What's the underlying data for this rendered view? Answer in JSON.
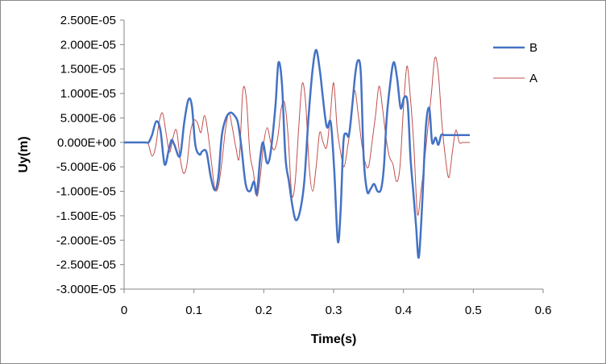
{
  "chart_data": {
    "type": "line",
    "title": "",
    "xlabel": "Time(s)",
    "ylabel": "Uy(m)",
    "xlim": [
      0,
      0.6
    ],
    "ylim": [
      -3e-05,
      2.5e-05
    ],
    "x_ticks": [
      "0",
      "0.1",
      "0.2",
      "0.3",
      "0.4",
      "0.5",
      "0.6"
    ],
    "x_tick_values": [
      0,
      0.1,
      0.2,
      0.3,
      0.4,
      0.5,
      0.6
    ],
    "y_ticks": [
      "2.500E-05",
      "2.000E-05",
      "1.500E-05",
      "1.000E-05",
      "5.000E-06",
      "0.000E+00",
      "-5.000E-06",
      "-1.000E-05",
      "-1.500E-05",
      "-2.000E-05",
      "-2.500E-05",
      "-3.000E-05"
    ],
    "y_tick_values": [
      2.5e-05,
      2e-05,
      1.5e-05,
      1e-05,
      5e-06,
      0,
      -5e-06,
      -1e-05,
      -1.5e-05,
      -2e-05,
      -2.5e-05,
      -3e-05
    ],
    "grid": false,
    "legend_position": "right",
    "series": [
      {
        "name": "B",
        "color": "#4472c4",
        "x": [
          0,
          0.03,
          0.035,
          0.04,
          0.046,
          0.052,
          0.058,
          0.064,
          0.068,
          0.072,
          0.08,
          0.086,
          0.092,
          0.097,
          0.102,
          0.108,
          0.112,
          0.118,
          0.124,
          0.13,
          0.135,
          0.14,
          0.146,
          0.152,
          0.158,
          0.163,
          0.168,
          0.174,
          0.18,
          0.186,
          0.19,
          0.195,
          0.199,
          0.204,
          0.208,
          0.212,
          0.217,
          0.221,
          0.226,
          0.231,
          0.236,
          0.241,
          0.246,
          0.252,
          0.258,
          0.264,
          0.27,
          0.275,
          0.28,
          0.284,
          0.288,
          0.291,
          0.296,
          0.301,
          0.306,
          0.31,
          0.314,
          0.318,
          0.322,
          0.327,
          0.331,
          0.335,
          0.339,
          0.343,
          0.348,
          0.353,
          0.358,
          0.363,
          0.368,
          0.372,
          0.376,
          0.381,
          0.386,
          0.391,
          0.396,
          0.401,
          0.406,
          0.41,
          0.414,
          0.418,
          0.422,
          0.427,
          0.432,
          0.437,
          0.441,
          0.446,
          0.45,
          0.454,
          0.458,
          0.462,
          0.466,
          0.47,
          0.474,
          0.478,
          0.483,
          0.487,
          0.491,
          0.495
        ],
        "y": [
          0,
          0,
          0,
          1.5e-06,
          4.3e-06,
          2.5e-06,
          -4.5e-06,
          -1.5e-06,
          5e-07,
          -5e-07,
          -2.8e-06,
          4e-06,
          8.7e-06,
          7.5e-06,
          -5e-07,
          -2.5e-06,
          -1.8e-06,
          -2e-06,
          -7e-06,
          -9.8e-06,
          -7e-06,
          1.5e-06,
          5e-06,
          6.1e-06,
          5.5e-06,
          4e-06,
          -1e-06,
          -8.5e-06,
          -1e-05,
          -8e-06,
          -1.05e-05,
          -3e-06,
          0,
          -4e-06,
          -3.5e-06,
          5e-07,
          8e-06,
          1.63e-05,
          1.2e-05,
          -3e-06,
          -8e-06,
          -1.3e-05,
          -1.59e-05,
          -1.4e-05,
          -8e-06,
          5e-06,
          1.5e-05,
          1.89e-05,
          1.5e-05,
          1e-05,
          5e-06,
          3e-06,
          4e-06,
          -6e-06,
          -2.02e-05,
          -1.4e-05,
          0,
          1.8e-06,
          1.5e-06,
          8e-06,
          1.4e-05,
          1.68e-05,
          1.4e-05,
          -3e-06,
          -1e-05,
          -9.5e-06,
          -8.5e-06,
          -1e-05,
          -9.5e-06,
          -5e-06,
          5e-06,
          1.2e-05,
          1.64e-05,
          1.3e-05,
          7e-06,
          9.2e-06,
          8e-06,
          -3e-06,
          -1e-05,
          -1.7e-05,
          -2.35e-05,
          -1.2e-05,
          3e-06,
          7e-06,
          0,
          1e-06,
          -5e-07,
          1.5e-06,
          1.5e-06,
          1.5e-06,
          1.5e-06,
          1.5e-06,
          1.5e-06,
          1.5e-06,
          1.5e-06,
          1.5e-06,
          1.5e-06,
          1.5e-06
        ]
      },
      {
        "name": "A",
        "color": "#c0504d",
        "x": [
          0,
          0.03,
          0.035,
          0.04,
          0.045,
          0.05,
          0.055,
          0.06,
          0.065,
          0.07,
          0.075,
          0.08,
          0.085,
          0.09,
          0.095,
          0.1,
          0.105,
          0.11,
          0.115,
          0.12,
          0.125,
          0.13,
          0.135,
          0.14,
          0.145,
          0.15,
          0.155,
          0.16,
          0.165,
          0.17,
          0.175,
          0.18,
          0.185,
          0.19,
          0.195,
          0.2,
          0.205,
          0.21,
          0.215,
          0.22,
          0.225,
          0.23,
          0.235,
          0.24,
          0.245,
          0.25,
          0.255,
          0.26,
          0.265,
          0.27,
          0.275,
          0.28,
          0.285,
          0.29,
          0.295,
          0.3,
          0.305,
          0.31,
          0.315,
          0.32,
          0.325,
          0.33,
          0.335,
          0.34,
          0.345,
          0.35,
          0.355,
          0.36,
          0.365,
          0.37,
          0.375,
          0.38,
          0.385,
          0.39,
          0.395,
          0.4,
          0.405,
          0.41,
          0.415,
          0.42,
          0.425,
          0.43,
          0.435,
          0.44,
          0.445,
          0.45,
          0.455,
          0.46,
          0.465,
          0.47,
          0.475,
          0.48,
          0.485,
          0.49,
          0.495
        ],
        "y": [
          0,
          0,
          -5e-07,
          -2.8e-06,
          -1e-06,
          4e-06,
          6e-06,
          2e-06,
          -2e-06,
          1e-06,
          2.5e-06,
          -3e-06,
          -6.3e-06,
          -4.5e-06,
          2e-06,
          4.5e-06,
          4e-06,
          2e-06,
          5.5e-06,
          2e-06,
          -4e-06,
          -9.5e-06,
          -9e-06,
          -4e-06,
          2.5e-06,
          6e-06,
          3e-06,
          -1e-06,
          -3e-06,
          1.05e-05,
          9e-06,
          -2e-06,
          -6e-06,
          -1.1e-05,
          -7e-06,
          0,
          3e-06,
          0,
          -1.5e-06,
          1e-06,
          7e-06,
          8e-06,
          1e-06,
          -1.07e-05,
          -8e-06,
          3e-06,
          1.2e-05,
          8e-06,
          -5e-06,
          -1e-05,
          -5e-06,
          2e-06,
          0,
          -1e-06,
          5e-06,
          1.22e-05,
          3e-06,
          -2e-06,
          -5e-06,
          -1e-06,
          4e-06,
          1.06e-05,
          6e-06,
          0,
          -4e-06,
          -5e-06,
          0,
          5.5e-06,
          1.15e-05,
          7e-06,
          1e-06,
          -3e-06,
          -4.5e-06,
          -8e-06,
          -5e-06,
          7e-06,
          1.56e-05,
          9e-06,
          -1e-06,
          -1.46e-05,
          -1e-05,
          -4e-06,
          3e-06,
          1e-05,
          1.73e-05,
          1.4e-05,
          4e-06,
          -3e-06,
          -7.2e-06,
          -2e-06,
          2.5e-06,
          0,
          0,
          0,
          0
        ]
      }
    ]
  }
}
